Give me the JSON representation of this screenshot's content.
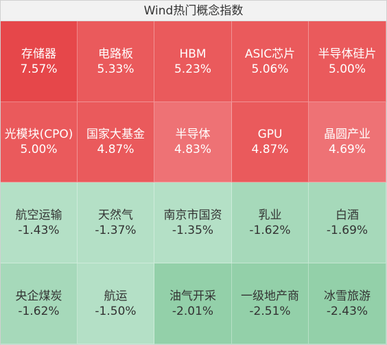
{
  "header": {
    "title": "Wind热门概念指数"
  },
  "colors": {
    "up_strong": "#e6474a",
    "up_mid": "#ea5a5c",
    "up_light": "#ee7275",
    "down_light": "#b4e0c6",
    "down_mid": "#a6d9ba",
    "down_strong": "#93d0a9"
  },
  "chart_data": {
    "type": "heatmap",
    "title": "Wind热门概念指数",
    "rows": 4,
    "cols": 5,
    "cells": [
      {
        "name": "存储器",
        "label": "7.57%",
        "value": 7.57
      },
      {
        "name": "电路板",
        "label": "5.33%",
        "value": 5.33
      },
      {
        "name": "HBM",
        "label": "5.23%",
        "value": 5.23
      },
      {
        "name": "ASIC芯片",
        "label": "5.06%",
        "value": 5.06
      },
      {
        "name": "半导体硅片",
        "label": "5.00%",
        "value": 5.0
      },
      {
        "name": "光模块(CPO)",
        "label": "5.00%",
        "value": 5.0
      },
      {
        "name": "国家大基金",
        "label": "4.87%",
        "value": 4.87
      },
      {
        "name": "半导体",
        "label": "4.83%",
        "value": 4.83
      },
      {
        "name": "GPU",
        "label": "4.87%",
        "value": 4.87
      },
      {
        "name": "晶圆产业",
        "label": "4.69%",
        "value": 4.69
      },
      {
        "name": "航空运输",
        "label": "-1.43%",
        "value": -1.43
      },
      {
        "name": "天然气",
        "label": "-1.37%",
        "value": -1.37
      },
      {
        "name": "南京市国资",
        "label": "-1.35%",
        "value": -1.35
      },
      {
        "name": "乳业",
        "label": "-1.62%",
        "value": -1.62
      },
      {
        "name": "白酒",
        "label": "-1.69%",
        "value": -1.69
      },
      {
        "name": "央企煤炭",
        "label": "-1.62%",
        "value": -1.62
      },
      {
        "name": "航运",
        "label": "-1.50%",
        "value": -1.5
      },
      {
        "name": "油气开采",
        "label": "-2.01%",
        "value": -2.01
      },
      {
        "name": "一级地产商",
        "label": "-2.51%",
        "value": -2.51
      },
      {
        "name": "冰雪旅游",
        "label": "-2.43%",
        "value": -2.43
      }
    ]
  }
}
